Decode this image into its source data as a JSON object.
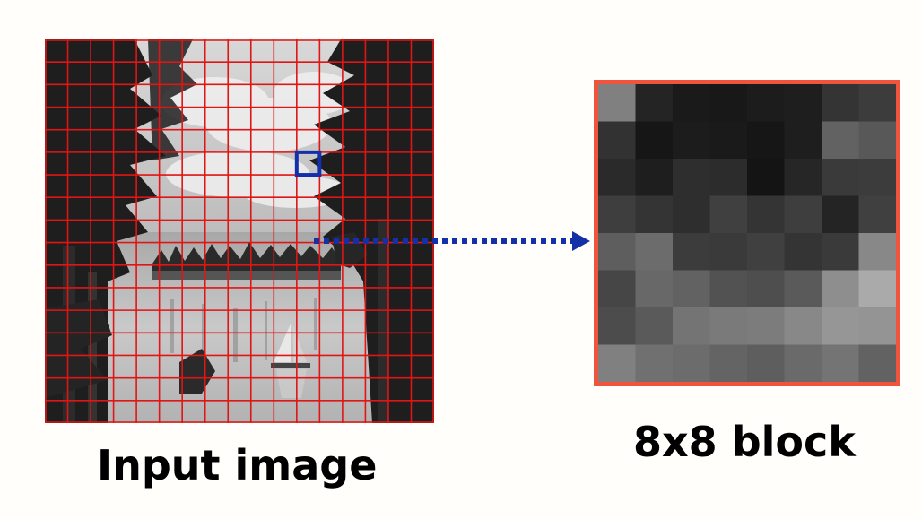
{
  "labels": {
    "input_image": "Input image",
    "block": "8x8 block"
  },
  "grid": {
    "rows": 17,
    "cols": 17,
    "line_color": "#e01515"
  },
  "highlight": {
    "row": 5,
    "col": 11,
    "color": "#1330a8"
  },
  "arrow": {
    "color": "#1330a8",
    "style": "dotted"
  },
  "block": {
    "size": 8,
    "border_color": "#f0543c",
    "gray_levels": [
      [
        128,
        36,
        26,
        24,
        28,
        30,
        52,
        60
      ],
      [
        50,
        22,
        28,
        26,
        22,
        30,
        98,
        88
      ],
      [
        42,
        30,
        46,
        44,
        20,
        38,
        58,
        60
      ],
      [
        62,
        52,
        46,
        64,
        52,
        62,
        36,
        64
      ],
      [
        94,
        108,
        60,
        58,
        64,
        52,
        58,
        136
      ],
      [
        70,
        104,
        98,
        82,
        78,
        90,
        142,
        170
      ],
      [
        76,
        90,
        116,
        122,
        124,
        136,
        150,
        148
      ],
      [
        128,
        112,
        108,
        100,
        94,
        106,
        116,
        98
      ]
    ]
  }
}
